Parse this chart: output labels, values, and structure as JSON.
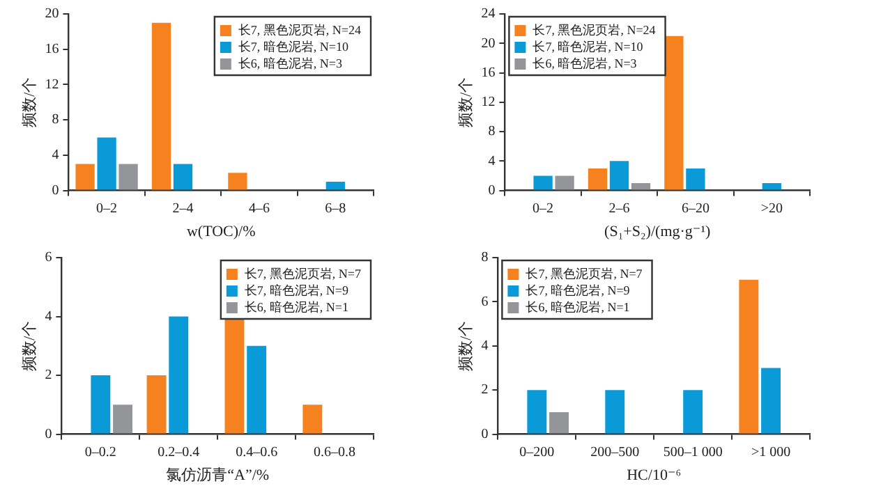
{
  "chart_data": [
    {
      "type": "bar",
      "xlabel": "w(TOC)/%",
      "ylabel": "频数/个",
      "categories": [
        "0–2",
        "2–4",
        "4–6",
        "6–8"
      ],
      "ylim": [
        0,
        20
      ],
      "yticks": [
        0,
        4,
        8,
        12,
        16,
        20
      ],
      "legend": "top right",
      "series": [
        {
          "name": "长7, 黑色泥页岩, N=24",
          "color": "#f5821f",
          "values": [
            3,
            19,
            2,
            0
          ]
        },
        {
          "name": "长7, 暗色泥岩, N=10",
          "color": "#0a9ad8",
          "values": [
            6,
            3,
            0,
            1
          ]
        },
        {
          "name": "长6, 暗色泥岩, N=3",
          "color": "#939598",
          "values": [
            3,
            0,
            0,
            0
          ]
        }
      ]
    },
    {
      "type": "bar",
      "xlabel": "(S₁+S₂)/(mg·g⁻¹)",
      "ylabel": "频数/个",
      "categories": [
        "0–2",
        "2–6",
        "6–20",
        ">20"
      ],
      "ylim": [
        0,
        24
      ],
      "yticks": [
        0,
        4,
        8,
        12,
        16,
        20,
        24
      ],
      "legend": "top left",
      "series": [
        {
          "name": "长7, 黑色泥页岩, N=24",
          "color": "#f5821f",
          "values": [
            0,
            3,
            21,
            0
          ]
        },
        {
          "name": "长7, 暗色泥岩, N=10",
          "color": "#0a9ad8",
          "values": [
            2,
            4,
            3,
            1
          ]
        },
        {
          "name": "长6, 暗色泥岩, N=3",
          "color": "#939598",
          "values": [
            2,
            1,
            0,
            0
          ]
        }
      ]
    },
    {
      "type": "bar",
      "xlabel": "氯仿沥青“A”/%",
      "ylabel": "频数/个",
      "categories": [
        "0–0.2",
        "0.2–0.4",
        "0.4–0.6",
        "0.6–0.8"
      ],
      "ylim": [
        0,
        6
      ],
      "yticks": [
        0,
        2,
        4,
        6
      ],
      "legend": "top right",
      "series": [
        {
          "name": "长7, 黑色泥页岩, N=7",
          "color": "#f5821f",
          "values": [
            0,
            2,
            4,
            1
          ]
        },
        {
          "name": "长7, 暗色泥岩, N=9",
          "color": "#0a9ad8",
          "values": [
            2,
            4,
            3,
            0
          ]
        },
        {
          "name": "长6, 暗色泥岩, N=1",
          "color": "#939598",
          "values": [
            1,
            0,
            0,
            0
          ]
        }
      ]
    },
    {
      "type": "bar",
      "xlabel": "HC/10⁻⁶",
      "ylabel": "频数/个",
      "categories": [
        "0–200",
        "200–500",
        "500–1 000",
        ">1 000"
      ],
      "ylim": [
        0,
        8
      ],
      "yticks": [
        0,
        2,
        4,
        6,
        8
      ],
      "legend": "top left",
      "series": [
        {
          "name": "长7, 黑色泥页岩, N=7",
          "color": "#f5821f",
          "values": [
            0,
            0,
            0,
            7
          ]
        },
        {
          "name": "长7, 暗色泥岩, N=9",
          "color": "#0a9ad8",
          "values": [
            2,
            2,
            2,
            3
          ]
        },
        {
          "name": "长6, 暗色泥岩, N=1",
          "color": "#939598",
          "values": [
            1,
            0,
            0,
            0
          ]
        }
      ]
    }
  ]
}
